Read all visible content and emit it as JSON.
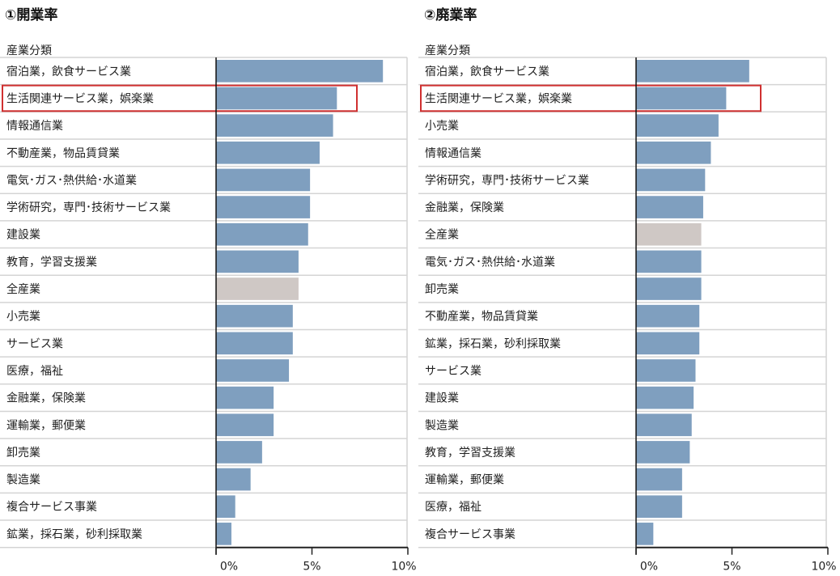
{
  "chart_data": [
    {
      "type": "bar",
      "orientation": "horizontal",
      "title": "①開業率",
      "category_header": "産業分類",
      "categories": [
        "宿泊業，飲食サービス業",
        "生活関連サービス業，娯楽業",
        "情報通信業",
        "不動産業，物品賃貸業",
        "電気･ガス･熱供給･水道業",
        "学術研究，専門･技術サービス業",
        "建設業",
        "教育，学習支援業",
        "全産業",
        "小売業",
        "サービス業",
        "医療，福祉",
        "金融業，保険業",
        "運輸業，郵便業",
        "卸売業",
        "製造業",
        "複合サービス事業",
        "鉱業，採石業，砂利採取業"
      ],
      "values": [
        8.7,
        6.3,
        6.1,
        5.4,
        4.9,
        4.9,
        4.8,
        4.3,
        4.3,
        4.0,
        4.0,
        3.8,
        3.0,
        3.0,
        2.4,
        1.8,
        1.0,
        0.8
      ],
      "unit": "%",
      "xlim": [
        0,
        10
      ],
      "xticks": [
        "0%",
        "5%",
        "10%"
      ],
      "highlighted": "生活関連サービス業，娯楽業",
      "highlight_box_color": "#d03030",
      "bar_color": "#7f9fbf",
      "total_bar_color": "#cfc8c5",
      "total_category": "全産業"
    },
    {
      "type": "bar",
      "orientation": "horizontal",
      "title": "②廃業率",
      "category_header": "産業分類",
      "categories": [
        "宿泊業，飲食サービス業",
        "生活関連サービス業，娯楽業",
        "小売業",
        "情報通信業",
        "学術研究，専門･技術サービス業",
        "金融業，保険業",
        "全産業",
        "電気･ガス･熱供給･水道業",
        "卸売業",
        "不動産業，物品賃貸業",
        "鉱業，採石業，砂利採取業",
        "サービス業",
        "建設業",
        "製造業",
        "教育，学習支援業",
        "運輸業，郵便業",
        "医療，福祉",
        "複合サービス事業"
      ],
      "values": [
        5.9,
        4.7,
        4.3,
        3.9,
        3.6,
        3.5,
        3.4,
        3.4,
        3.4,
        3.3,
        3.3,
        3.1,
        3.0,
        2.9,
        2.8,
        2.4,
        2.4,
        0.9
      ],
      "unit": "%",
      "xlim": [
        0,
        10
      ],
      "xticks": [
        "0%",
        "5%",
        "10%"
      ],
      "highlighted": "生活関連サービス業，娯楽業",
      "highlight_box_color": "#d03030",
      "bar_color": "#7f9fbf",
      "total_bar_color": "#cfc8c5",
      "total_category": "全産業"
    }
  ]
}
